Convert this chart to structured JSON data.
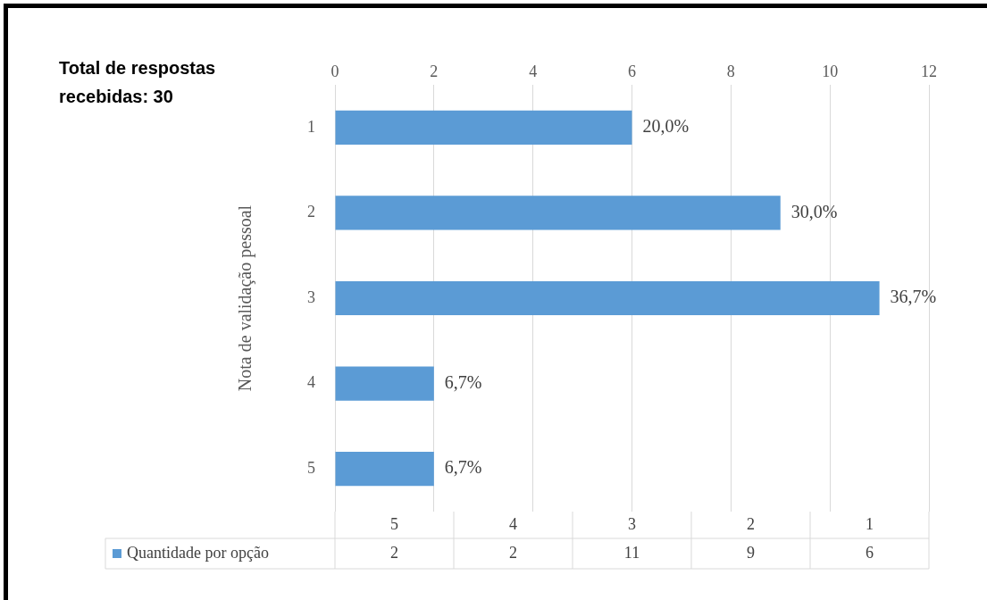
{
  "chart_data": {
    "type": "bar",
    "orientation": "horizontal",
    "ylabel": "Nota de validação pessoal",
    "annotations": [
      "Total de respostas recebidas: 30",
      {
        "text": "20,0%",
        "x": 6,
        "y": "1"
      },
      {
        "text": "30,0%",
        "x": 9,
        "y": "2"
      },
      {
        "text": "36,7%",
        "x": 11,
        "y": "3"
      },
      {
        "text": "6,7%",
        "x": 2,
        "y": "4"
      },
      {
        "text": "6,7%",
        "x": 2,
        "y": "5"
      },
      "2",
      "2",
      "11",
      "9",
      "6"
    ],
    "categories": [
      "1",
      "2",
      "3",
      "4",
      "5"
    ],
    "series": [
      {
        "name": "Quantidade por opção",
        "color": "#5b9bd5",
        "values": [
          6,
          9,
          11,
          2,
          2
        ]
      }
    ],
    "xlim": [
      0,
      12
    ],
    "xticks": [
      0,
      2,
      4,
      6,
      8,
      10,
      12
    ],
    "grid": "x",
    "legend": "bottom"
  }
}
